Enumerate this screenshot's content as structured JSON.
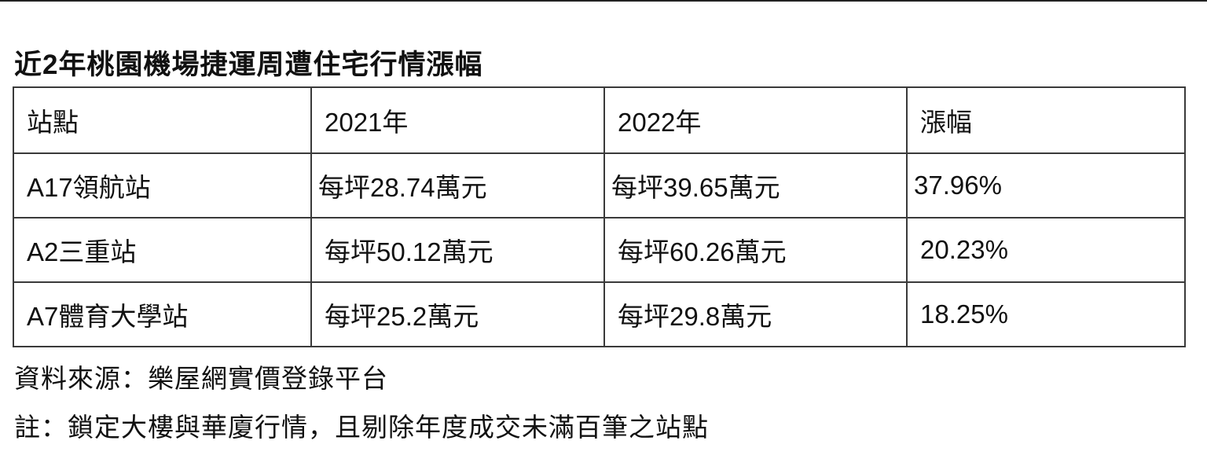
{
  "title": "近2年桃園機場捷運周遭住宅行情漲幅",
  "table": {
    "headers": [
      "站點",
      "2021年",
      "2022年",
      "漲幅"
    ],
    "rows": [
      [
        "A17領航站",
        "每坪28.74萬元",
        "每坪39.65萬元",
        "37.96%"
      ],
      [
        "A2三重站",
        "每坪50.12萬元",
        "每坪60.26萬元",
        "20.23%"
      ],
      [
        "A7體育大學站",
        "每坪25.2萬元",
        "每坪29.8萬元",
        "18.25%"
      ]
    ]
  },
  "source": "資料來源：樂屋網實價登錄平台",
  "note": "註：鎖定大樓與華廈行情，且剔除年度成交未滿百筆之站點"
}
